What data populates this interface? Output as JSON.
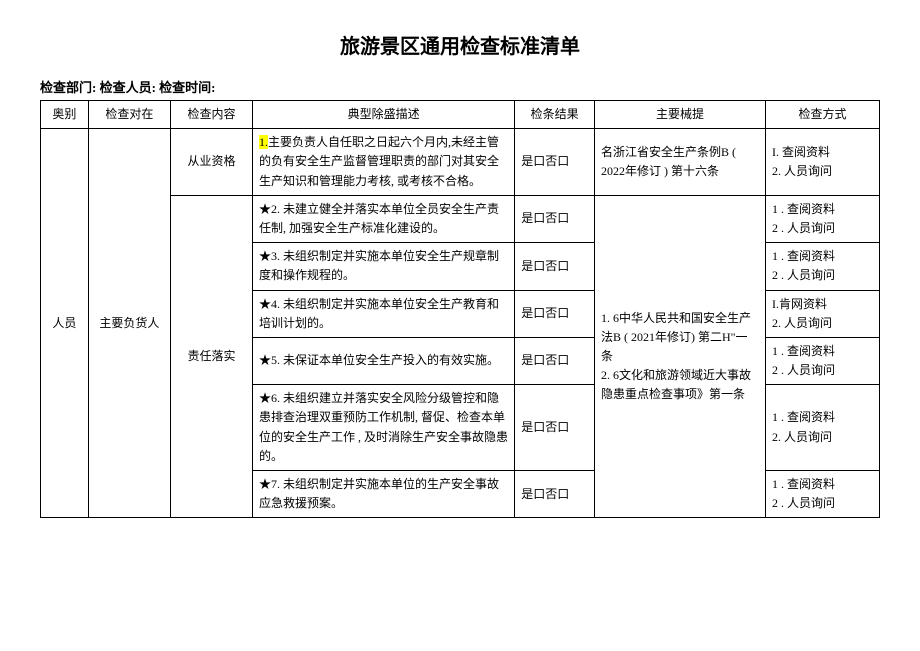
{
  "title": "旅游景区通用检查标准清单",
  "meta": "检查部门:  检查人员:  检查时间:",
  "headers": {
    "c1": "奥别",
    "c2": "检查对在",
    "c3": "检查内容",
    "c4": "典型除盛描述",
    "c5": "检条结果",
    "c6": "主要械提",
    "c7": "检查方式"
  },
  "cat": "人员",
  "target": "主要负货人",
  "content1": "从业资格",
  "content2": "责任落实",
  "desc1_a": "1.",
  "desc1_b": "主要负责人自任职之日起六个月内,未经主管的负有安全生产监督管理职责的部门对其安全生产知识和管理能力考核,  或考核不合格。",
  "desc2": "★2. 未建立健全并落实本单位全员安全生产责任制,  加强安全生产标准化建设的。",
  "desc3": "★3. 未组织制定并实施本单位安全生产规章制度和操作规程的。",
  "desc4": "★4. 未组织制定并实施本单位安全生产教育和培训计划的。",
  "desc5": "★5. 未保证本单位安全生产投入的有效实施。",
  "desc6": "★6. 未组织建立并落实安全风险分级管控和隐患排查治理双重预防工作机制, 督促、检查本单位的安全生产工作 , 及时消除生产安全事故隐患的。",
  "desc7": "★7. 未组织制定并实施本单位的生产安全事故应急救援预案。",
  "result_yn": "是口否口",
  "basis1": "名浙江省安全生产条例B ( 2022年修订 ) 第十六条",
  "basis2": "1. 6中华人民共和国安全生产法B ( 2021年修订) 第二H\"一条\n2. 6文化和旅游领域近大事故隐患重点检查事项》第一条",
  "method1": "I. 查阅资料\n2. 人员询问",
  "method2": "1 . 查阅资料\n2 . 人员询问",
  "method3": "1 . 查阅资料\n2 . 人员询问",
  "method4": "I.肯网资料\n2. 人员询问",
  "method5": "1 . 查阅资料\n2 . 人员询问",
  "method6": "1 . 查阅资料\n2. 人员询问",
  "method7": "1 . 查阅资料\n2 . 人员询问",
  "colors": {
    "highlight": "#ffff00",
    "text": "#000000",
    "background": "#ffffff",
    "border": "#000000"
  }
}
